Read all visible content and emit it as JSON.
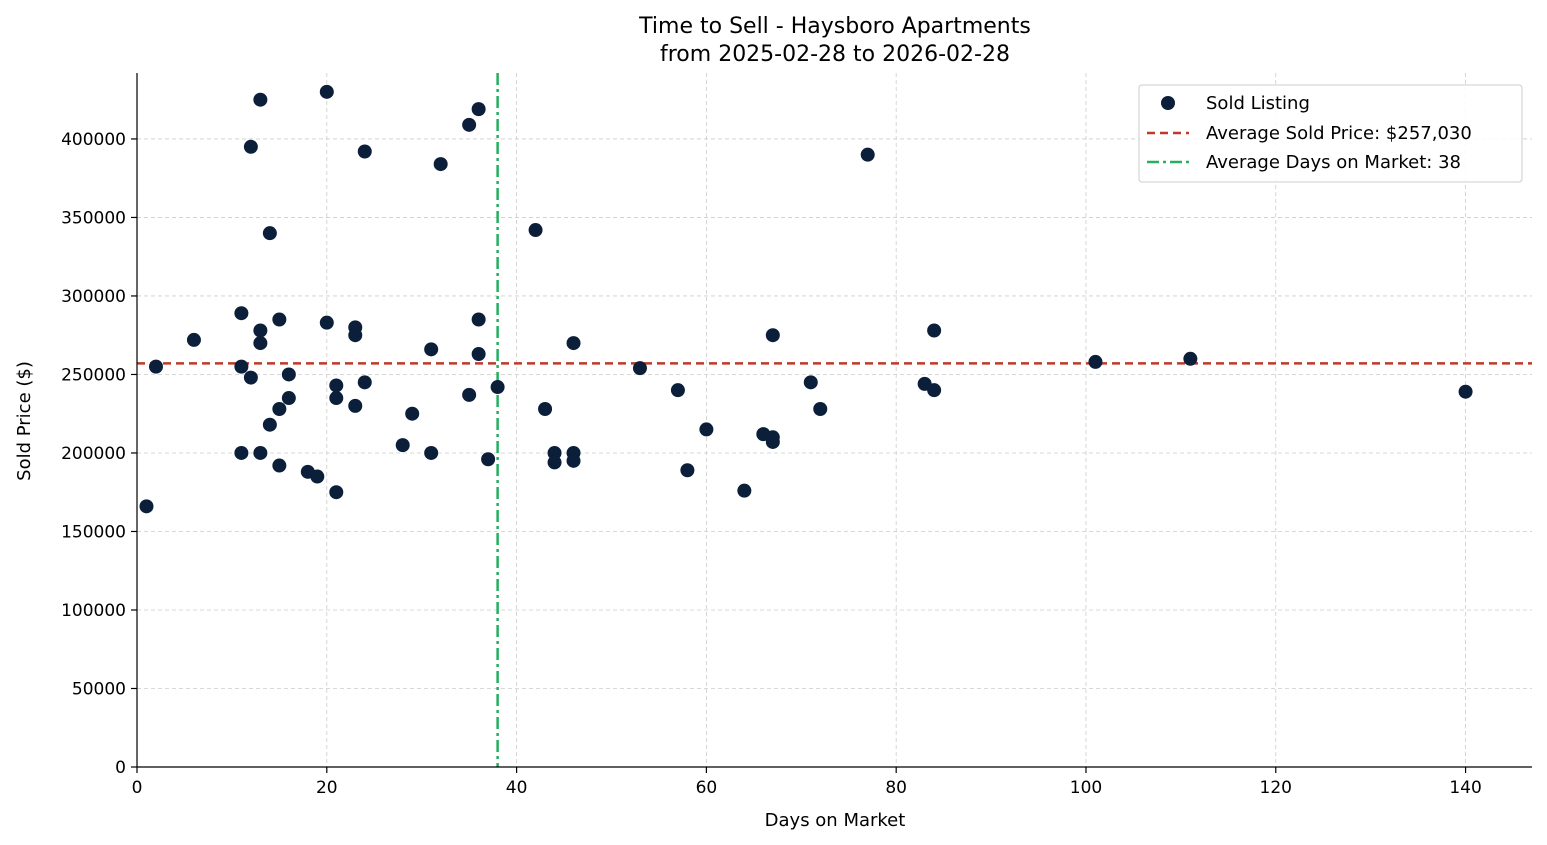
{
  "chart_data": {
    "type": "scatter",
    "title": [
      "Time to Sell - Haysboro Apartments",
      "from 2025-02-28 to 2026-02-28"
    ],
    "xlabel": "Days on Market",
    "ylabel": "Sold Price ($)",
    "xlim": [
      0,
      147
    ],
    "ylim": [
      0,
      442000
    ],
    "xticks": [
      0,
      20,
      40,
      60,
      80,
      100,
      120,
      140
    ],
    "yticks": [
      0,
      50000,
      100000,
      150000,
      200000,
      250000,
      300000,
      350000,
      400000
    ],
    "xtick_labels": [
      "0",
      "20",
      "40",
      "60",
      "80",
      "100",
      "120",
      "140"
    ],
    "ytick_labels": [
      "0",
      "50000",
      "100000",
      "150000",
      "200000",
      "250000",
      "300000",
      "350000",
      "400000"
    ],
    "grid": true,
    "legend_position": "top-right",
    "series": [
      {
        "name": "Sold Listing",
        "color": "#0b1f3a",
        "points": [
          [
            1,
            166000
          ],
          [
            2,
            255000
          ],
          [
            6,
            272000
          ],
          [
            11,
            289000
          ],
          [
            11,
            255000
          ],
          [
            11,
            200000
          ],
          [
            12,
            395000
          ],
          [
            12,
            248000
          ],
          [
            13,
            425000
          ],
          [
            13,
            278000
          ],
          [
            13,
            270000
          ],
          [
            13,
            200000
          ],
          [
            14,
            340000
          ],
          [
            14,
            218000
          ],
          [
            15,
            285000
          ],
          [
            15,
            228000
          ],
          [
            15,
            192000
          ],
          [
            16,
            250000
          ],
          [
            16,
            235000
          ],
          [
            18,
            188000
          ],
          [
            19,
            185000
          ],
          [
            20,
            430000
          ],
          [
            20,
            283000
          ],
          [
            21,
            243000
          ],
          [
            21,
            235000
          ],
          [
            21,
            175000
          ],
          [
            23,
            280000
          ],
          [
            23,
            275000
          ],
          [
            23,
            230000
          ],
          [
            24,
            392000
          ],
          [
            24,
            245000
          ],
          [
            28,
            205000
          ],
          [
            29,
            225000
          ],
          [
            31,
            266000
          ],
          [
            31,
            200000
          ],
          [
            32,
            384000
          ],
          [
            35,
            409000
          ],
          [
            35,
            237000
          ],
          [
            36,
            419000
          ],
          [
            36,
            285000
          ],
          [
            36,
            263000
          ],
          [
            37,
            196000
          ],
          [
            38,
            242000
          ],
          [
            42,
            342000
          ],
          [
            43,
            228000
          ],
          [
            44,
            200000
          ],
          [
            44,
            194000
          ],
          [
            46,
            270000
          ],
          [
            46,
            200000
          ],
          [
            46,
            195000
          ],
          [
            53,
            254000
          ],
          [
            57,
            240000
          ],
          [
            58,
            189000
          ],
          [
            60,
            215000
          ],
          [
            64,
            176000
          ],
          [
            66,
            212000
          ],
          [
            67,
            275000
          ],
          [
            67,
            210000
          ],
          [
            67,
            207000
          ],
          [
            71,
            245000
          ],
          [
            72,
            228000
          ],
          [
            77,
            390000
          ],
          [
            83,
            244000
          ],
          [
            84,
            278000
          ],
          [
            84,
            240000
          ],
          [
            101,
            258000
          ],
          [
            111,
            260000
          ],
          [
            140,
            239000
          ]
        ]
      }
    ],
    "reference_lines": {
      "avg_price": {
        "value": 257030,
        "color": "#c0392b",
        "label": "Average Sold Price: $257,030"
      },
      "avg_days": {
        "value": 38,
        "color": "#27ae60",
        "label": "Average Days on Market: 38"
      }
    },
    "legend": [
      "Sold Listing",
      "Average Sold Price: $257,030",
      "Average Days on Market: 38"
    ]
  }
}
